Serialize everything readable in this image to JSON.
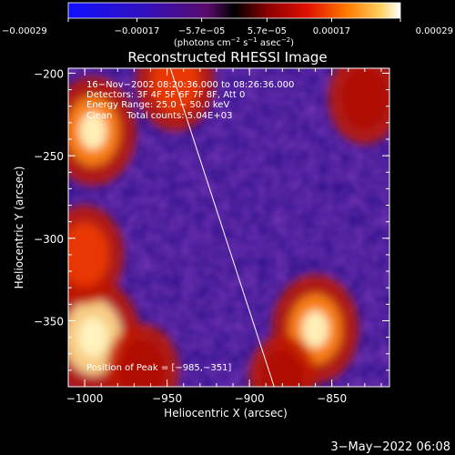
{
  "chart_data": {
    "type": "heatmap",
    "title": "Reconstructed RHESSI Image",
    "xlabel": "Heliocentric X (arcsec)",
    "ylabel": "Heliocentric Y (arcsec)",
    "xlim": [
      -1010,
      -815
    ],
    "ylim": [
      -390,
      -197
    ],
    "x_ticks": [
      -1000,
      -950,
      -900,
      -850
    ],
    "x_tick_labels": [
      "−1000",
      "−950",
      "−900",
      "−850"
    ],
    "y_ticks": [
      -350,
      -300,
      -250,
      -200
    ],
    "y_tick_labels": [
      "−350",
      "−300",
      "−250",
      "−200"
    ],
    "colorbar": {
      "ticks": [
        -0.00029,
        -0.00017,
        -5.7e-05,
        5.7e-05,
        0.00017,
        0.00029
      ],
      "tick_labels": [
        "−0.00029",
        "−0.00017",
        "−5.7e−05",
        "5.7e−05",
        "0.00017",
        "0.00029"
      ],
      "label_prefix": "(photons cm",
      "label_sup1": "−2",
      "label_mid1": " s",
      "label_sup2": "−1",
      "label_mid2": " asec",
      "label_sup3": "−2",
      "label_suffix": ")",
      "range": [
        -0.00029,
        0.00029
      ]
    },
    "info_lines": [
      "16−Nov−2002 08:20:36.000 to 08:26:36.000",
      "Detectors: 3F 4F 5F 6F 7F 8F, Att 0",
      "Energy Range: 25.0 − 50.0 keV",
      "Clean     Total counts: 5.04E+03"
    ],
    "peak_label": "Position of Peak = [−985,−351]",
    "limb_line": [
      [
        -948,
        -197
      ],
      [
        -885,
        -390
      ]
    ],
    "bright_regions": [
      {
        "x": -995,
        "y": -360,
        "intensity": 1.0
      },
      {
        "x": -1000,
        "y": -310,
        "intensity": 0.7
      },
      {
        "x": -995,
        "y": -235,
        "intensity": 0.85
      },
      {
        "x": -945,
        "y": -205,
        "intensity": 0.7
      },
      {
        "x": -860,
        "y": -355,
        "intensity": 0.85
      },
      {
        "x": -830,
        "y": -215,
        "intensity": 0.6
      },
      {
        "x": -965,
        "y": -380,
        "intensity": 0.6
      },
      {
        "x": -880,
        "y": -385,
        "intensity": 0.5
      }
    ],
    "timestamp": "3−May−2022 06:08"
  }
}
